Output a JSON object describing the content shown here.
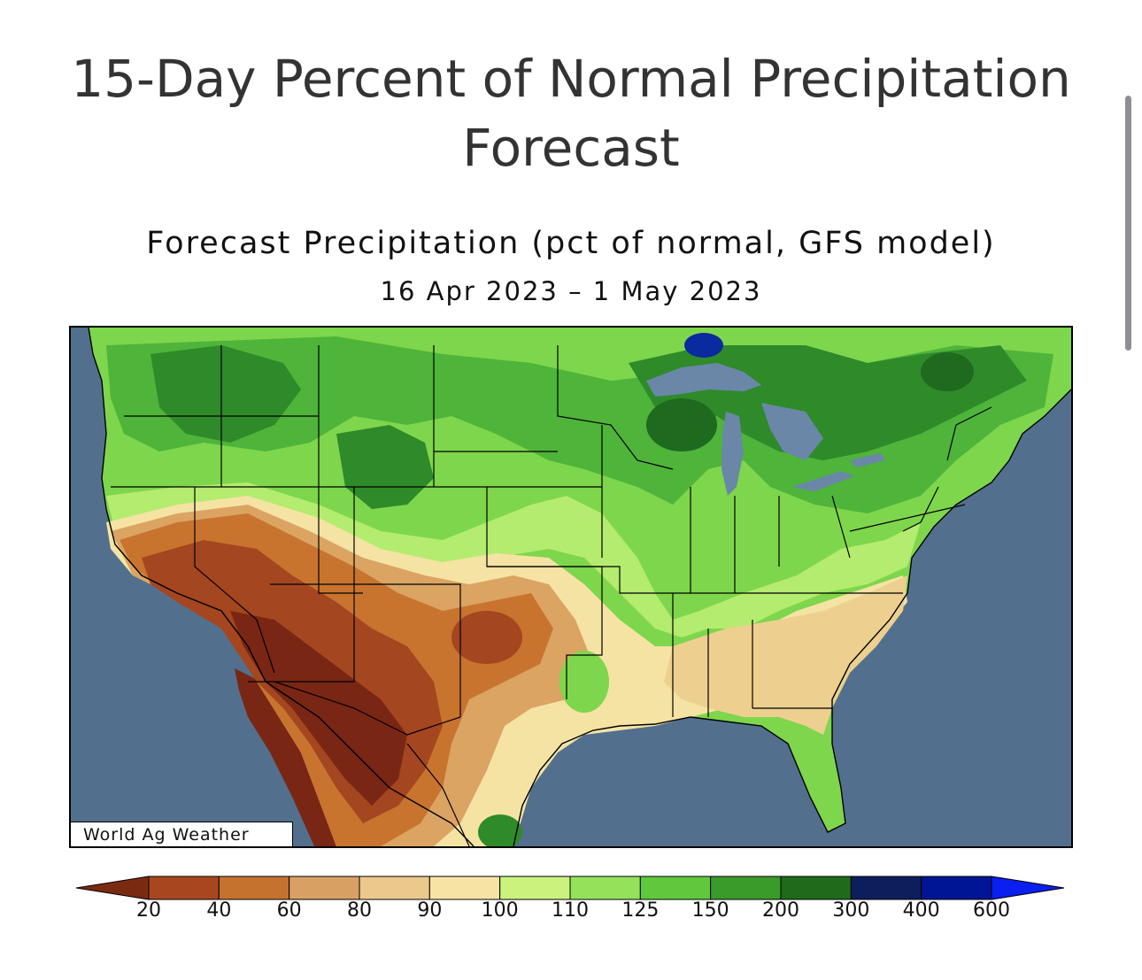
{
  "header": {
    "title_line1": "15-Day Percent of Normal Precipitation",
    "title_line2": "Forecast"
  },
  "figure": {
    "title": "Forecast Precipitation (pct of normal, GFS model)",
    "dates": "16 Apr 2023 – 1 May 2023",
    "credit": "World Ag Weather"
  },
  "legend": {
    "ticks": [
      "20",
      "40",
      "60",
      "80",
      "90",
      "100",
      "110",
      "125",
      "150",
      "200",
      "300",
      "400",
      "600"
    ],
    "colors": [
      "#7b2a12",
      "#a8471f",
      "#c5722f",
      "#d9a064",
      "#ebc88c",
      "#f7e3a4",
      "#ccf27e",
      "#95e25a",
      "#5fc83c",
      "#3a9a2a",
      "#1f6b1c",
      "#0c1f5c",
      "#001595",
      "#0a1ff0"
    ]
  },
  "map_colors": {
    "ocean": "#52708e",
    "lakes": "#6a87a8",
    "dry_deep": "#7a2614",
    "dry": "#a4461f",
    "dry_mid": "#c8742f",
    "tan": "#dba463",
    "light_tan": "#edd08f",
    "cream": "#f5e3a4",
    "light_green": "#b4ec6f",
    "green": "#7ed64c",
    "mid_green": "#4fb43a",
    "dark_green": "#2f8a2a",
    "deep_green": "#1e6a1e",
    "deep_blue": "#0a2aa0"
  }
}
